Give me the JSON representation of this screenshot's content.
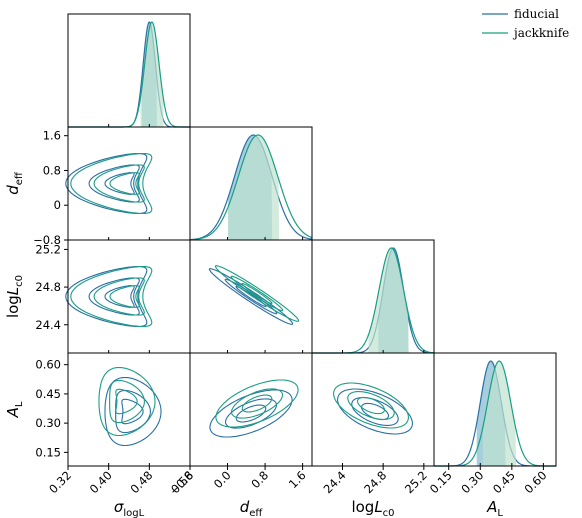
{
  "chart_data": {
    "type": "corner",
    "parameters": [
      {
        "key": "sigma",
        "tex": "σ",
        "sub": "logL",
        "range": [
          0.32,
          0.56
        ],
        "ticks": [
          0.32,
          0.4,
          0.48,
          0.56
        ],
        "tick_labels": [
          "0.32",
          "0.40",
          "0.48",
          "0.56"
        ]
      },
      {
        "key": "deff",
        "tex": "d",
        "sub": "eff",
        "range": [
          -0.8,
          1.8
        ],
        "ticks": [
          -0.8,
          0.0,
          0.8,
          1.6
        ],
        "tick_labels": [
          "−0.8",
          "0.0",
          "0.8",
          "1.6"
        ],
        "ylabel_ticks": [
          "−0.8",
          "0",
          "0.8",
          "1.6"
        ]
      },
      {
        "key": "logLc0",
        "tex": "logL",
        "sub": "c0",
        "range": [
          24.1,
          25.3
        ],
        "ticks": [
          24.4,
          24.8,
          25.2
        ],
        "tick_labels": [
          "24.4",
          "24.8",
          "25.2"
        ]
      },
      {
        "key": "AL",
        "tex": "A",
        "sub": "L",
        "range": [
          0.08,
          0.66
        ],
        "ticks": [
          0.15,
          0.3,
          0.45,
          0.6
        ],
        "tick_labels": [
          "0.15",
          "0.30",
          "0.45",
          "0.60"
        ]
      }
    ],
    "series": [
      {
        "name": "fiducial",
        "color": "#2a6fa6",
        "fill": "#9cc9d8",
        "marginals": [
          {
            "mean": 0.48,
            "sd": 0.012,
            "band": [
              0.465,
              0.495
            ]
          },
          {
            "mean": 0.55,
            "sd": 0.4,
            "band": [
              0.0,
              0.95
            ]
          },
          {
            "mean": 24.9,
            "sd": 0.1,
            "band": [
              24.75,
              25.05
            ]
          },
          {
            "mean": 0.35,
            "sd": 0.05,
            "band": [
              0.28,
              0.42
            ]
          }
        ]
      },
      {
        "name": "jackknife",
        "color": "#1a9e84",
        "fill": "#bfe3cf",
        "marginals": [
          {
            "mean": 0.485,
            "sd": 0.014,
            "band": [
              0.462,
              0.508
            ]
          },
          {
            "mean": 0.65,
            "sd": 0.42,
            "band": [
              0.0,
              1.1
            ]
          },
          {
            "mean": 24.88,
            "sd": 0.12,
            "band": [
              24.65,
              25.05
            ]
          },
          {
            "mean": 0.39,
            "sd": 0.055,
            "band": [
              0.31,
              0.47
            ]
          }
        ]
      }
    ],
    "contours": [
      {
        "pair": "deff-sigma",
        "center": [
          0.45,
          0.4
        ],
        "shape": "crescent"
      },
      {
        "pair": "logLc0-sigma",
        "center": [
          0.45,
          24.8
        ],
        "shape": "crescent"
      },
      {
        "pair": "logLc0-deff",
        "center": [
          0.4,
          24.8
        ],
        "shape": "diagonal"
      },
      {
        "pair": "AL-sigma",
        "center": [
          0.44,
          0.34
        ],
        "shape": "blob"
      },
      {
        "pair": "AL-deff",
        "center": [
          0.5,
          0.36
        ],
        "shape": "tilted"
      },
      {
        "pair": "AL-logLc0",
        "center": [
          24.8,
          0.36
        ],
        "shape": "tilted-neg"
      }
    ],
    "legend_position": "top-right"
  }
}
